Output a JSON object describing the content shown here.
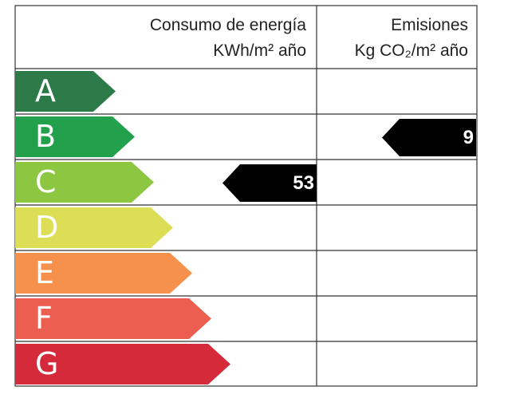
{
  "header": {
    "energy": {
      "title": "Consumo de energía",
      "unit": "KWh/m² año"
    },
    "emissions": {
      "title": "Emisiones",
      "unit": "Kg CO₂/m² año"
    }
  },
  "ratings": [
    {
      "letter": "A",
      "color": "#2b7a47"
    },
    {
      "letter": "B",
      "color": "#23a04c"
    },
    {
      "letter": "C",
      "color": "#8dc640"
    },
    {
      "letter": "D",
      "color": "#dcdf55"
    },
    {
      "letter": "E",
      "color": "#f6914d"
    },
    {
      "letter": "F",
      "color": "#ec5e50"
    },
    {
      "letter": "G",
      "color": "#d42a3a"
    }
  ],
  "consumption": {
    "rating": "C",
    "value": 53
  },
  "emissions": {
    "rating": "B",
    "value": 9
  }
}
